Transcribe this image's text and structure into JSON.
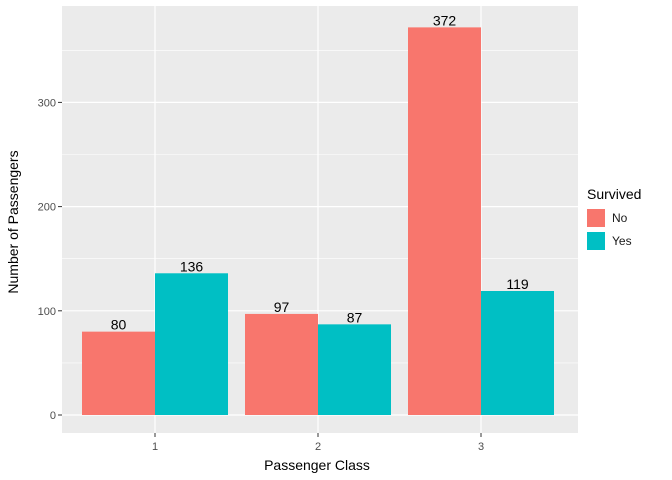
{
  "chart_data": {
    "type": "bar",
    "categories": [
      "1",
      "2",
      "3"
    ],
    "series": [
      {
        "name": "No",
        "values": [
          80,
          97,
          372
        ],
        "color": "#F8766D"
      },
      {
        "name": "Yes",
        "values": [
          136,
          87,
          119
        ],
        "color": "#00BFC4"
      }
    ],
    "xlabel": "Passenger Class",
    "ylabel": "Number of Passengers",
    "legend_title": "Survived",
    "legend_position": "right",
    "ylim": [
      0,
      390
    ],
    "yticks": [
      0,
      100,
      200,
      300
    ],
    "grid": true,
    "panel_background": "#EBEBEB",
    "grid_color": "#FFFFFF"
  }
}
